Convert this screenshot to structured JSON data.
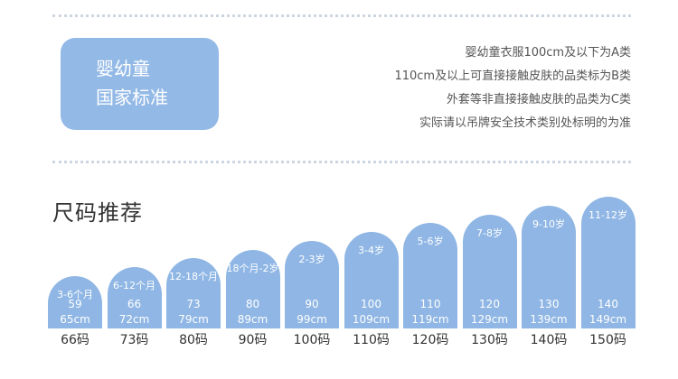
{
  "badge": {
    "line1": "婴幼童",
    "line2": "国家标准"
  },
  "notes": [
    "婴幼童衣服100cm及以下为A类",
    "110cm及以上可直接接触皮肤的品类标为B类",
    "外套等非直接接触皮肤的品类为C类",
    "实际请以吊牌安全技术类别处标明的为准"
  ],
  "section": {
    "title": "尺码推荐"
  },
  "colors": {
    "accent": "#8fb6e4",
    "badge": "#93b9e6"
  },
  "sizes": [
    {
      "age": "3-6个月",
      "weight": "59",
      "height": "65cm",
      "size": "66码"
    },
    {
      "age": "6-12个月",
      "weight": "66",
      "height": "72cm",
      "size": "73码"
    },
    {
      "age": "12-18个月",
      "weight": "73",
      "height": "79cm",
      "size": "80码"
    },
    {
      "age": "18个月-2岁",
      "weight": "80",
      "height": "89cm",
      "size": "90码"
    },
    {
      "age": "2-3岁",
      "weight": "90",
      "height": "99cm",
      "size": "100码"
    },
    {
      "age": "3-4岁",
      "weight": "100",
      "height": "109cm",
      "size": "110码"
    },
    {
      "age": "5-6岁",
      "weight": "110",
      "height": "119cm",
      "size": "120码"
    },
    {
      "age": "7-8岁",
      "weight": "120",
      "height": "129cm",
      "size": "130码"
    },
    {
      "age": "9-10岁",
      "weight": "130",
      "height": "139cm",
      "size": "140码"
    },
    {
      "age": "11-12岁",
      "weight": "140",
      "height": "149cm",
      "size": "150码"
    }
  ]
}
